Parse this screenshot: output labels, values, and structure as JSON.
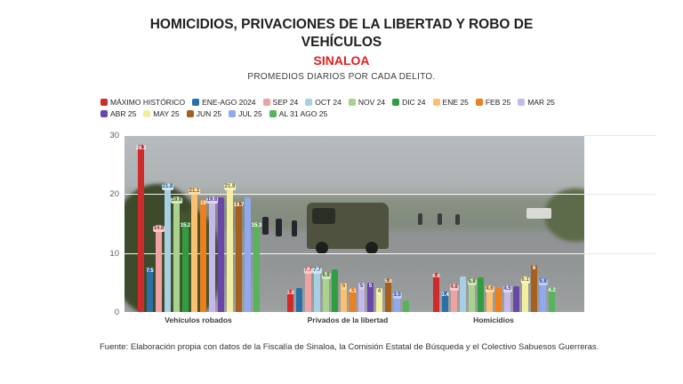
{
  "title": {
    "main": "HOMICIDIOS, PRIVACIONES DE LA LIBERTAD Y ROBO DE VEHÍCULOS",
    "region": "SINALOA",
    "subtitle": "PROMEDIOS DIARIOS POR CADA DELITO."
  },
  "footer": {
    "text": "Fuente: Elaboración propia con datos de la Fiscalía de Sinaloa, la Comisión Estatal de Búsqueda y el Colectivo Sabuesos Guerreras."
  },
  "chart_data": {
    "type": "bar",
    "title": "HOMICIDIOS, PRIVACIONES DE LA LIBERTAD Y ROBO DE VEHÍCULOS — SINALOA",
    "subtitle": "PROMEDIOS DIARIOS POR CADA DELITO.",
    "categories": [
      "Vehículos robados",
      "Privados de la libertad",
      "Homicidios"
    ],
    "y_axis": {
      "ticks": [
        0,
        10,
        20,
        30
      ],
      "min": 0,
      "max": 30,
      "grid": true
    },
    "legend_position": "top-left",
    "series": [
      {
        "name": "MÁXIMO HISTÓRICO",
        "color": "#cf2b2b",
        "dark": true,
        "label_color": "#ffffff",
        "pill_bg": "",
        "values": [
          28.3,
          3.8,
          6.6
        ],
        "labels": [
          "28.3",
          "3.8",
          "6.6"
        ]
      },
      {
        "name": "ENE-AGO 2024",
        "color": "#2c6fa6",
        "dark": true,
        "label_color": "#ffffff",
        "pill_bg": "",
        "values": [
          7.5,
          4.0,
          3.4
        ],
        "labels": [
          "7.5",
          "",
          "3.4"
        ]
      },
      {
        "name": "SEP 24",
        "color": "#f0a1a1",
        "dark": false,
        "label_color": "#8c3535",
        "pill_bg": "#f7cdcd",
        "values": [
          14.8,
          7.7,
          4.8
        ],
        "labels": [
          "14.8",
          "7.7",
          "4.8"
        ]
      },
      {
        "name": "OCT 24",
        "color": "#a8cfe4",
        "dark": false,
        "label_color": "#215a78",
        "pill_bg": "#cfe6f2",
        "values": [
          21.8,
          7.7,
          6.0
        ],
        "labels": [
          "21.8",
          "7.7",
          ""
        ]
      },
      {
        "name": "NOV 24",
        "color": "#aad28f",
        "dark": false,
        "label_color": "#3c5a1e",
        "pill_bg": "#d3e8c2",
        "values": [
          19.6,
          6.8,
          5.8
        ],
        "labels": [
          "19.6",
          "6.8",
          "5.8"
        ]
      },
      {
        "name": "DIC 24",
        "color": "#2f9e41",
        "dark": true,
        "label_color": "#ffffff",
        "pill_bg": "",
        "values": [
          15.2,
          7.2,
          5.9
        ],
        "labels": [
          "15.2",
          "",
          ""
        ]
      },
      {
        "name": "ENE 25",
        "color": "#fcc170",
        "dark": false,
        "label_color": "#8a5200",
        "pill_bg": "#fbdcae",
        "values": [
          21.1,
          5.0,
          4.6
        ],
        "labels": [
          "21.1",
          "5",
          "4.6"
        ]
      },
      {
        "name": "FEB 25",
        "color": "#ee7f1d",
        "dark": true,
        "label_color": "#ffffff",
        "pill_bg": "",
        "values": [
          19.0,
          4.1,
          4.1
        ],
        "labels": [
          "19",
          "4.1",
          ""
        ]
      },
      {
        "name": "MAR 25",
        "color": "#c6b8e8",
        "dark": false,
        "label_color": "#4a3585",
        "pill_bg": "#ddd4f1",
        "values": [
          19.6,
          5.0,
          4.5
        ],
        "labels": [
          "19.6",
          "5",
          "4.5"
        ]
      },
      {
        "name": "ABR 25",
        "color": "#6a46a8",
        "dark": true,
        "label_color": "#ffffff",
        "pill_bg": "",
        "values": [
          19.4,
          5.0,
          4.4
        ],
        "labels": [
          "",
          "5",
          ""
        ]
      },
      {
        "name": "MAY 25",
        "color": "#f3efa0",
        "dark": false,
        "label_color": "#6a6318",
        "pill_bg": "#f7f4c4",
        "values": [
          21.9,
          4.0,
          6.1
        ],
        "labels": [
          "21.9",
          "4",
          "6.1"
        ]
      },
      {
        "name": "JUN 25",
        "color": "#a5601f",
        "dark": true,
        "label_color": "#ffffff",
        "pill_bg": "",
        "values": [
          18.7,
          5.8,
          8.0
        ],
        "labels": [
          "18.7",
          "5.8",
          "8"
        ]
      },
      {
        "name": "JUL 25",
        "color": "#91a9ee",
        "dark": false,
        "label_color": "#23418f",
        "pill_bg": "#c3cff7",
        "values": [
          19.5,
          3.5,
          5.8
        ],
        "labels": [
          "",
          "3.5",
          "5.8"
        ]
      },
      {
        "name": "AL 31 AGO 25",
        "color": "#58b35c",
        "dark": true,
        "label_color": "#ffffff",
        "pill_bg": "",
        "values": [
          15.3,
          2.0,
          4.2
        ],
        "labels": [
          "15.3",
          "",
          "4.2"
        ]
      }
    ]
  }
}
